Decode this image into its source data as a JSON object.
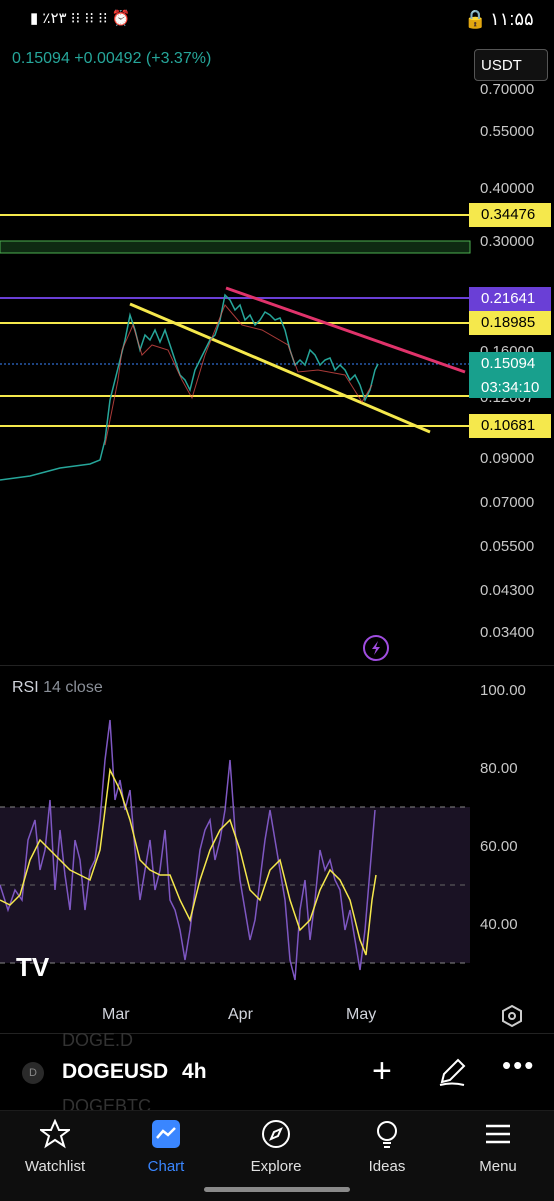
{
  "status_bar": {
    "left": "▮ ٪۲۳ ⁝⁝ ⁝⁝ ⁝⁝ ⏰",
    "time": "۱۱:۵۵"
  },
  "header": {
    "price_change": "0.15094 +0.00492 (+3.37%)",
    "currency_button": "USDT"
  },
  "price_axis": {
    "labels": [
      "0.70000",
      "0.55000",
      "0.40000",
      "0.30000",
      "0.16000",
      "0.12067",
      "0.09000",
      "0.07000",
      "0.05500",
      "0.04300",
      "0.03400"
    ]
  },
  "levels": {
    "l1": "0.34476",
    "l2": "0.21641",
    "l3": "0.18985",
    "current": "0.15094",
    "countdown": "03:34:10",
    "l4": "0.10681"
  },
  "rsi": {
    "name": "RSI",
    "params": "14 close",
    "axis": [
      "100.00",
      "80.00",
      "60.00",
      "40.00"
    ]
  },
  "time_axis": [
    "Mar",
    "Apr",
    "May"
  ],
  "symbol_bar": {
    "ghost_above": "DOGE.D",
    "symbol": "DOGEUSD",
    "interval": "4h",
    "ghost_below": "DOGEBTC",
    "badge": "D"
  },
  "nav": [
    {
      "label": "Watchlist",
      "icon": "star-icon"
    },
    {
      "label": "Chart",
      "icon": "chart-icon"
    },
    {
      "label": "Explore",
      "icon": "compass-icon"
    },
    {
      "label": "Ideas",
      "icon": "lightbulb-icon"
    },
    {
      "label": "Menu",
      "icon": "menu-icon"
    }
  ],
  "colors": {
    "up": "#26a69a",
    "down": "#ef5350",
    "yellow": "#f5e84c",
    "purple": "#6a3fd6",
    "accent": "#3a86ff",
    "trend_red": "#e0336b"
  }
}
